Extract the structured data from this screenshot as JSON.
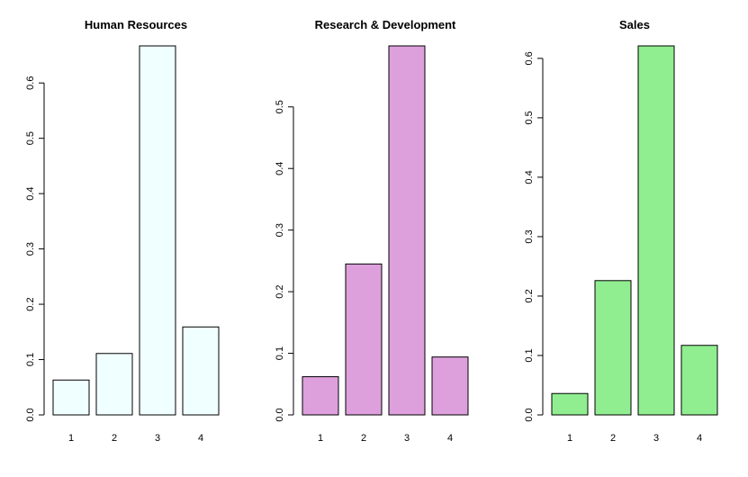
{
  "chart_data": [
    {
      "type": "bar",
      "title": "Human Resources",
      "categories": [
        "1",
        "2",
        "3",
        "4"
      ],
      "values": [
        0.063,
        0.111,
        0.667,
        0.159
      ],
      "yticks": [
        "0.0",
        "0.1",
        "0.2",
        "0.3",
        "0.4",
        "0.5",
        "0.6"
      ],
      "ylim": [
        0,
        0.667
      ],
      "color": "#F0FFFF"
    },
    {
      "type": "bar",
      "title": "Research & Development",
      "categories": [
        "1",
        "2",
        "3",
        "4"
      ],
      "values": [
        0.062,
        0.245,
        0.599,
        0.094
      ],
      "yticks": [
        "0.0",
        "0.1",
        "0.2",
        "0.3",
        "0.4",
        "0.5"
      ],
      "ylim": [
        0,
        0.599
      ],
      "color": "#DDA0DD"
    },
    {
      "type": "bar",
      "title": "Sales",
      "categories": [
        "1",
        "2",
        "3",
        "4"
      ],
      "values": [
        0.036,
        0.226,
        0.621,
        0.117
      ],
      "yticks": [
        "0.0",
        "0.1",
        "0.2",
        "0.3",
        "0.4",
        "0.5",
        "0.6"
      ],
      "ylim": [
        0,
        0.621
      ],
      "color": "#90EE90"
    }
  ]
}
